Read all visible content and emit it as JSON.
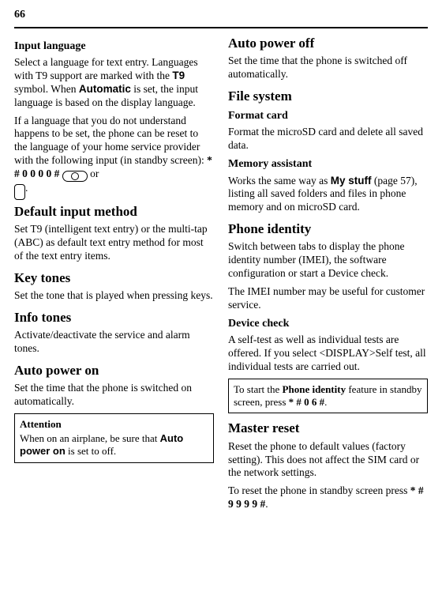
{
  "pageNumber": "66",
  "left": {
    "inputLanguage": {
      "heading": "Input language",
      "p1_a": "Select a language for text entry. Languages with T9 support are marked with the ",
      "t9": "T9",
      "p1_b": " symbol. When ",
      "automatic": "Automatic",
      "p1_c": " is set, the input language is based on the display language.",
      "p2_a": "If a language that you do not understand happens to be set, the phone can be reset to the language of your home service provider with the following input (in standby screen): ",
      "code": "* # 0 0 0 0 # ",
      "p2_b": " or",
      "p2_c": "."
    },
    "defaultInput": {
      "heading": "Default input method",
      "p": "Set T9 (intelligent text entry) or the multi-tap (ABC) as default text entry method for most of the text entry items."
    },
    "keyTones": {
      "heading": "Key tones",
      "p": "Set the tone that is played when pressing keys."
    },
    "infoTones": {
      "heading": "Info tones",
      "p": "Activate/deactivate the service and alarm tones."
    },
    "autoPowerOn": {
      "heading": "Auto power on",
      "p": "Set the time that the phone is switched on automatically."
    },
    "attentionBox": {
      "title": "Attention",
      "body_a": "When on an airplane, be sure that ",
      "auto": "Auto power on",
      "body_b": " is set to off."
    }
  },
  "right": {
    "autoPowerOff": {
      "heading": "Auto power off",
      "p": "Set the time that the phone is switched off automatically."
    },
    "fileSystem": {
      "heading": "File system",
      "formatCard": {
        "heading": "Format card",
        "p": "Format the microSD card and delete all saved data."
      },
      "memoryAssistant": {
        "heading": "Memory assistant",
        "p_a": "Works the same way as ",
        "mystuff": "My stuff",
        "p_b": " (page 57), listing all saved folders and files in phone memory and on microSD card."
      }
    },
    "phoneIdentity": {
      "heading": "Phone identity",
      "p1": "Switch between tabs to display the phone identity number (IMEI), the software configuration or start a Device check.",
      "p2": "The IMEI number may be useful for customer service.",
      "deviceCheck": {
        "heading": "Device check",
        "p": "A self-test as well as individual tests are offered. If you select <DISPLAY>Self test, all individual tests are carried out."
      },
      "box": {
        "line_a": "To start the ",
        "feat": "Phone identity",
        "line_b": " feature in standby screen, press ",
        "code": "* # 0 6 #",
        "line_c": "."
      }
    },
    "masterReset": {
      "heading": "Master reset",
      "p1": "Reset the phone to default values (factory setting). This does not affect the SIM card or the network settings.",
      "p2_a": "To reset the phone in standby screen press ",
      "code": "* # 9 9 9 9 #",
      "p2_b": "."
    }
  }
}
